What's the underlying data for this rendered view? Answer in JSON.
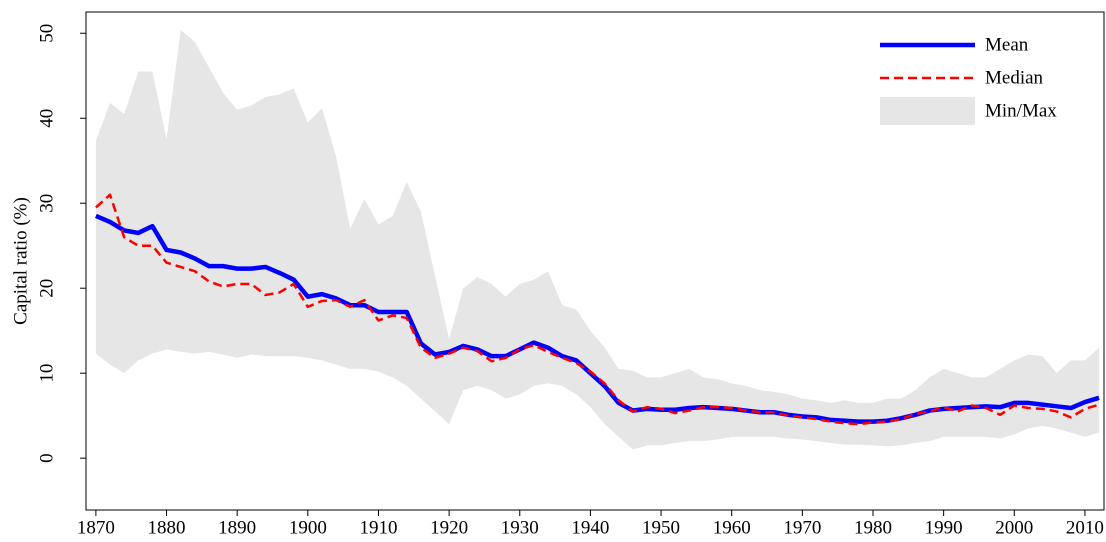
{
  "chart_data": {
    "type": "line",
    "y_label": "Capital ratio (%)",
    "x": [
      1870,
      1872,
      1874,
      1876,
      1878,
      1880,
      1882,
      1884,
      1886,
      1888,
      1890,
      1892,
      1894,
      1896,
      1898,
      1900,
      1902,
      1904,
      1906,
      1908,
      1910,
      1912,
      1914,
      1916,
      1918,
      1920,
      1922,
      1924,
      1926,
      1928,
      1930,
      1932,
      1934,
      1936,
      1938,
      1940,
      1942,
      1944,
      1946,
      1948,
      1950,
      1952,
      1954,
      1956,
      1958,
      1960,
      1962,
      1964,
      1966,
      1968,
      1970,
      1972,
      1974,
      1976,
      1978,
      1980,
      1982,
      1984,
      1986,
      1988,
      1990,
      1992,
      1994,
      1996,
      1998,
      2000,
      2002,
      2004,
      2006,
      2008,
      2010,
      2012
    ],
    "series": [
      {
        "name": "Mean",
        "color": "#0000ff",
        "dash": false,
        "values": [
          28.5,
          27.8,
          26.8,
          26.5,
          27.3,
          24.5,
          24.2,
          23.5,
          22.6,
          22.6,
          22.3,
          22.3,
          22.5,
          21.8,
          21.0,
          19.0,
          19.3,
          18.8,
          18.0,
          18.0,
          17.2,
          17.2,
          17.2,
          13.5,
          12.2,
          12.5,
          13.2,
          12.8,
          12.0,
          12.0,
          12.8,
          13.6,
          13.0,
          12.0,
          11.5,
          10.0,
          8.5,
          6.5,
          5.6,
          5.8,
          5.7,
          5.7,
          5.9,
          6.0,
          5.9,
          5.8,
          5.6,
          5.4,
          5.4,
          5.1,
          4.9,
          4.8,
          4.5,
          4.4,
          4.3,
          4.3,
          4.4,
          4.7,
          5.1,
          5.6,
          5.8,
          5.9,
          6.0,
          6.1,
          6.0,
          6.5,
          6.5,
          6.3,
          6.1,
          5.9,
          6.6,
          7.1
        ]
      },
      {
        "name": "Median",
        "color": "#ff0000",
        "dash": true,
        "values": [
          29.5,
          31.0,
          26.0,
          25.0,
          25.0,
          23.0,
          22.5,
          22.0,
          20.8,
          20.2,
          20.5,
          20.5,
          19.2,
          19.5,
          20.5,
          17.8,
          18.5,
          18.6,
          17.8,
          18.6,
          16.2,
          16.8,
          16.5,
          13.0,
          11.8,
          12.3,
          13.0,
          12.6,
          11.4,
          11.8,
          12.8,
          13.3,
          12.5,
          11.8,
          11.2,
          10.2,
          8.8,
          6.8,
          5.5,
          6.0,
          5.8,
          5.3,
          5.6,
          6.0,
          6.0,
          5.9,
          5.6,
          5.4,
          5.4,
          5.0,
          4.8,
          4.6,
          4.3,
          4.1,
          4.0,
          4.2,
          4.3,
          4.6,
          5.2,
          5.5,
          6.0,
          5.5,
          6.2,
          5.9,
          5.1,
          6.2,
          5.9,
          5.8,
          5.5,
          4.8,
          5.8,
          6.3
        ]
      }
    ],
    "band": {
      "name": "Min/Max",
      "color": "#e6e6e6",
      "upper": [
        37.3,
        41.8,
        40.5,
        45.5,
        45.5,
        37.5,
        50.4,
        49.0,
        46.0,
        43.0,
        41.0,
        41.5,
        42.5,
        42.8,
        43.5,
        39.5,
        41.2,
        35.5,
        27.0,
        30.5,
        27.5,
        28.5,
        32.5,
        29.0,
        21.5,
        14.0,
        20.0,
        21.3,
        20.5,
        19.0,
        20.5,
        21.0,
        22.0,
        18.0,
        17.5,
        15.0,
        13.0,
        10.5,
        10.3,
        9.5,
        9.5,
        10.0,
        10.5,
        9.5,
        9.3,
        8.8,
        8.5,
        8.0,
        7.8,
        7.5,
        7.0,
        6.8,
        6.5,
        6.8,
        6.5,
        6.5,
        7.0,
        7.0,
        8.0,
        9.5,
        10.5,
        10.0,
        9.5,
        9.5,
        10.5,
        11.5,
        12.2,
        12.0,
        10.0,
        11.5,
        11.5,
        13.0
      ],
      "lower": [
        12.3,
        11.0,
        10.0,
        11.5,
        12.3,
        12.8,
        12.5,
        12.3,
        12.5,
        12.2,
        11.8,
        12.2,
        12.0,
        12.0,
        12.0,
        11.8,
        11.5,
        11.0,
        10.5,
        10.5,
        10.2,
        9.5,
        8.5,
        7.0,
        5.5,
        4.0,
        8.0,
        8.5,
        8.0,
        7.0,
        7.5,
        8.5,
        8.8,
        8.5,
        7.5,
        6.0,
        4.0,
        2.5,
        1.0,
        1.5,
        1.5,
        1.8,
        2.0,
        2.0,
        2.2,
        2.5,
        2.5,
        2.5,
        2.5,
        2.3,
        2.2,
        2.0,
        1.8,
        1.6,
        1.6,
        1.5,
        1.4,
        1.5,
        1.8,
        2.0,
        2.5,
        2.5,
        2.5,
        2.5,
        2.3,
        2.8,
        3.5,
        3.8,
        3.5,
        3.0,
        2.5,
        3.0
      ]
    },
    "xlim": [
      1868.6,
      2012.7
    ],
    "ylim": [
      -6.1,
      52.5
    ],
    "xticks": [
      1870,
      1880,
      1890,
      1900,
      1910,
      1920,
      1930,
      1940,
      1950,
      1960,
      1970,
      1980,
      1990,
      2000,
      2010
    ],
    "yticks": [
      0,
      10,
      20,
      30,
      40,
      50
    ],
    "grid": false,
    "legend": "upper right"
  }
}
